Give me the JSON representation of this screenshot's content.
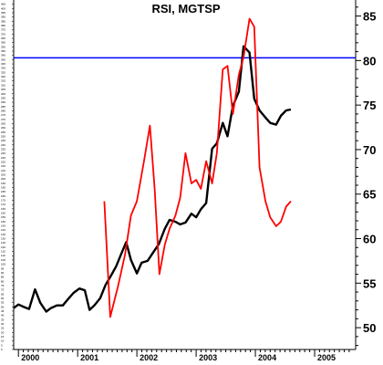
{
  "chart_data": {
    "type": "line",
    "title": "RSI, MGTSP",
    "xlabel": "",
    "ylabel": "",
    "x_ticks": [
      "2000",
      "2001",
      "2002",
      "2003",
      "2004",
      "2005"
    ],
    "x_range": [
      1999.92,
      2005.6
    ],
    "left_axis": {
      "ylim": [
        0,
        410
      ],
      "tick_values": [
        0,
        5,
        10,
        15,
        20,
        25,
        30,
        35,
        40,
        45,
        50,
        55,
        60,
        65,
        70,
        75,
        80,
        85,
        90,
        95,
        100,
        105,
        110,
        115,
        120,
        125,
        130,
        135,
        140,
        145,
        150,
        155,
        160,
        165,
        170,
        175,
        180,
        185,
        190,
        195,
        200,
        205,
        210,
        215,
        220,
        225,
        230,
        235,
        240,
        245,
        250,
        255,
        260,
        265,
        270,
        275,
        280,
        285,
        290,
        295,
        300,
        305,
        310,
        315,
        320,
        325,
        330,
        335,
        340,
        345,
        350,
        355,
        360,
        365,
        370,
        375,
        380,
        385,
        390,
        395,
        400,
        405
      ]
    },
    "right_axis": {
      "ylim": [
        47.55,
        86.8
      ],
      "tick_values": [
        50,
        55,
        60,
        65,
        70,
        75,
        80,
        85
      ]
    },
    "reference_line": {
      "value": 80.3,
      "axis": "right",
      "color": "#0000ff"
    },
    "series": [
      {
        "color": "#000000",
        "axis": "right",
        "x": [
          1999.92,
          2000.0,
          2000.1,
          2000.18,
          2000.28,
          2000.37,
          2000.47,
          2000.55,
          2000.65,
          2000.75,
          2000.85,
          2000.93,
          2001.03,
          2001.12,
          2001.2,
          2001.28,
          2001.38,
          2001.47,
          2001.55,
          2001.65,
          2001.73,
          2001.82,
          2001.9,
          2002.0,
          2002.08,
          2002.18,
          2002.28,
          2002.37,
          2002.47,
          2002.55,
          2002.65,
          2002.73,
          2002.82,
          2002.92,
          2003.0,
          2003.08,
          2003.17,
          2003.27,
          2003.35,
          2003.45,
          2003.53,
          2003.62,
          2003.72,
          2003.8,
          2003.9,
          2003.98,
          2004.07,
          2004.17,
          2004.25,
          2004.35,
          2004.43,
          2004.52,
          2004.6
        ],
        "values": [
          52.2,
          52.6,
          52.3,
          52.1,
          54.3,
          52.8,
          51.8,
          52.2,
          52.5,
          52.5,
          53.3,
          53.9,
          54.4,
          54.2,
          52.0,
          52.5,
          53.3,
          54.8,
          55.7,
          56.9,
          58.2,
          59.6,
          57.6,
          56.1,
          57.3,
          57.5,
          58.5,
          59.4,
          61.1,
          62.1,
          61.9,
          61.6,
          61.8,
          62.8,
          62.4,
          63.3,
          64.0,
          70.1,
          70.7,
          73.0,
          71.5,
          74.9,
          76.5,
          81.6,
          80.9,
          75.7,
          74.4,
          73.6,
          73.0,
          72.8,
          73.8,
          74.4,
          74.5
        ]
      },
      {
        "color": "#ff0000",
        "axis": "right",
        "x": [
          2001.45,
          2001.55,
          2001.68,
          2001.8,
          2001.9,
          2002.0,
          2002.12,
          2002.22,
          2002.3,
          2002.38,
          2002.47,
          2002.55,
          2002.65,
          2002.73,
          2002.82,
          2002.92,
          2003.0,
          2003.08,
          2003.17,
          2003.27,
          2003.35,
          2003.45,
          2003.53,
          2003.62,
          2003.72,
          2003.8,
          2003.9,
          2003.98,
          2004.07,
          2004.17,
          2004.25,
          2004.35,
          2004.43,
          2004.52,
          2004.6
        ],
        "values": [
          64.2,
          51.2,
          54.6,
          58.2,
          62.6,
          64.2,
          68.7,
          72.7,
          65.6,
          56.0,
          59.3,
          61.1,
          62.6,
          64.6,
          69.6,
          66.2,
          66.6,
          65.6,
          68.7,
          66.2,
          69.6,
          79.0,
          79.4,
          74.0,
          78.4,
          80.4,
          84.7,
          83.8,
          68.0,
          64.2,
          62.4,
          61.4,
          61.9,
          63.6,
          64.2
        ]
      }
    ],
    "grid": false,
    "legend": "none"
  }
}
